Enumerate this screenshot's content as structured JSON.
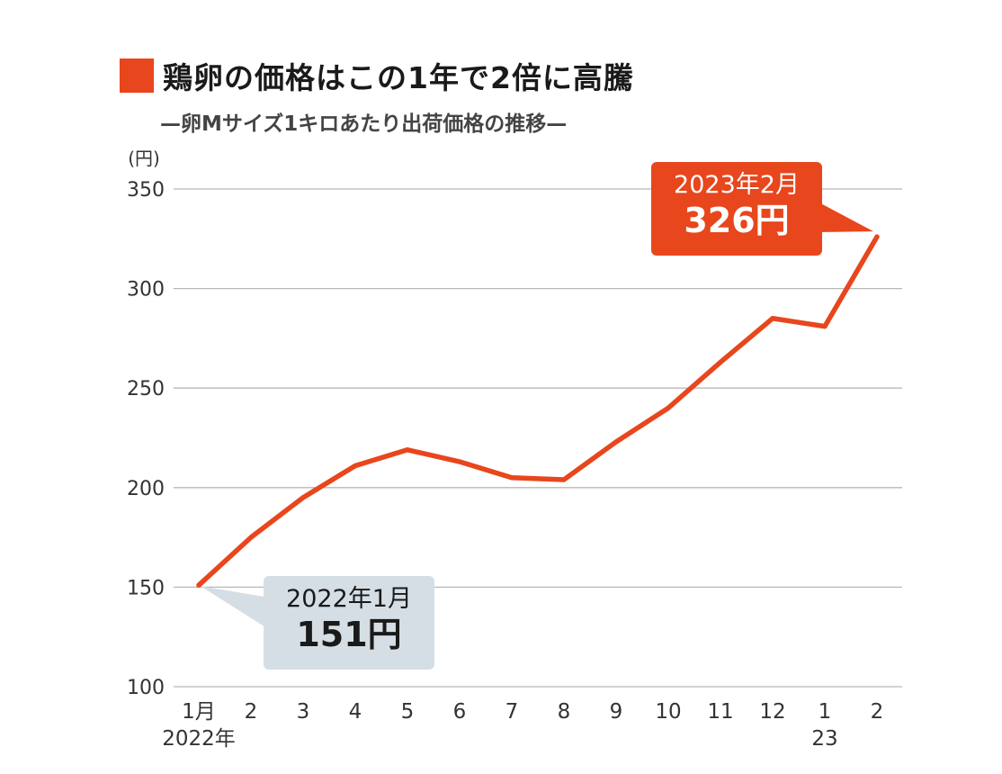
{
  "title": "鶏卵の価格はこの1年で2倍に高騰",
  "subtitle": "—卵Mサイズ1キロあたり出荷価格の推移—",
  "colors": {
    "accent": "#e8461c",
    "start_callout_bg": "#d5dee5",
    "grid": "#b8b8b8",
    "axis_text": "#333333"
  },
  "chart_data": {
    "type": "line",
    "ylabel": "(円)",
    "ylim": [
      100,
      350
    ],
    "y_ticks": [
      "100",
      "150",
      "200",
      "250",
      "300",
      "350"
    ],
    "grid": "horizontal",
    "x": [
      "2022-01",
      "2022-02",
      "2022-03",
      "2022-04",
      "2022-05",
      "2022-06",
      "2022-07",
      "2022-08",
      "2022-09",
      "2022-10",
      "2022-11",
      "2022-12",
      "2023-01",
      "2023-02"
    ],
    "x_tick_labels": [
      "1月",
      "2",
      "3",
      "4",
      "5",
      "6",
      "7",
      "8",
      "9",
      "10",
      "11",
      "12",
      "1",
      "2"
    ],
    "x_year_labels": [
      {
        "index": 0,
        "text": "2022年"
      },
      {
        "index": 12,
        "text": "23"
      }
    ],
    "series": [
      {
        "values": [
          151,
          175,
          195,
          211,
          219,
          213,
          205,
          204,
          223,
          240,
          263,
          285,
          281,
          326
        ]
      }
    ],
    "annotations": [
      {
        "name": "start",
        "index": 0,
        "date": "2022年1月",
        "value_text": "151円"
      },
      {
        "name": "end",
        "index": 13,
        "date": "2023年2月",
        "value_text": "326円"
      }
    ]
  }
}
